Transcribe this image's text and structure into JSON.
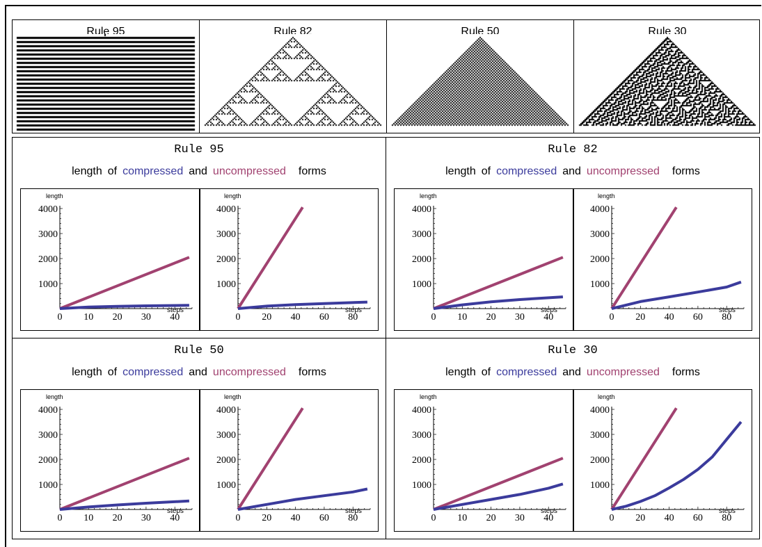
{
  "rules_strip": [
    {
      "title": "Rule 95",
      "pattern": "stripes"
    },
    {
      "title": "Rule 82",
      "pattern": "sierpinski"
    },
    {
      "title": "Rule 50",
      "pattern": "checker-triangle"
    },
    {
      "title": "Rule 30",
      "pattern": "chaotic"
    }
  ],
  "panel_subtitle": {
    "w1": "length",
    "w2": "of",
    "compressed": "compressed",
    "and": "and",
    "uncompressed": "uncompressed",
    "forms": "forms"
  },
  "colors": {
    "compressed": "#3b3b9c",
    "uncompressed": "#a14270"
  },
  "axis_text": {
    "ylabel": "length",
    "xlabel": "steps"
  },
  "chart_data": [
    {
      "type": "line",
      "title": "Rule 95",
      "subplots": [
        {
          "xlim": [
            0,
            46
          ],
          "ylim": [
            0,
            4000
          ],
          "xticks": [
            0,
            10,
            20,
            30,
            40
          ],
          "yticks": [
            1000,
            2000,
            3000,
            4000
          ],
          "xlabel": "steps",
          "ylabel": "length",
          "series": [
            {
              "name": "uncompressed",
              "x": [
                0,
                45
              ],
              "y": [
                0,
                2050
              ]
            },
            {
              "name": "compressed",
              "x": [
                0,
                10,
                20,
                30,
                45
              ],
              "y": [
                0,
                60,
                90,
                110,
                130
              ]
            }
          ]
        },
        {
          "xlim": [
            0,
            92
          ],
          "ylim": [
            0,
            4000
          ],
          "xticks": [
            0,
            20,
            40,
            60,
            80
          ],
          "yticks": [
            1000,
            2000,
            3000,
            4000
          ],
          "xlabel": "steps",
          "ylabel": "length",
          "series": [
            {
              "name": "uncompressed",
              "x": [
                0,
                45
              ],
              "y": [
                0,
                4050
              ]
            },
            {
              "name": "compressed",
              "x": [
                0,
                20,
                40,
                60,
                90
              ],
              "y": [
                0,
                100,
                160,
                200,
                260
              ]
            }
          ]
        }
      ]
    },
    {
      "type": "line",
      "title": "Rule 82",
      "subplots": [
        {
          "xlim": [
            0,
            46
          ],
          "ylim": [
            0,
            4000
          ],
          "xticks": [
            0,
            10,
            20,
            30,
            40
          ],
          "yticks": [
            1000,
            2000,
            3000,
            4000
          ],
          "xlabel": "steps",
          "ylabel": "length",
          "series": [
            {
              "name": "uncompressed",
              "x": [
                0,
                45
              ],
              "y": [
                0,
                2050
              ]
            },
            {
              "name": "compressed",
              "x": [
                0,
                10,
                20,
                30,
                45
              ],
              "y": [
                0,
                150,
                270,
                360,
                470
              ]
            }
          ]
        },
        {
          "xlim": [
            0,
            92
          ],
          "ylim": [
            0,
            4000
          ],
          "xticks": [
            0,
            20,
            40,
            60,
            80
          ],
          "yticks": [
            1000,
            2000,
            3000,
            4000
          ],
          "xlabel": "steps",
          "ylabel": "length",
          "series": [
            {
              "name": "uncompressed",
              "x": [
                0,
                45
              ],
              "y": [
                0,
                4050
              ]
            },
            {
              "name": "compressed",
              "x": [
                0,
                20,
                40,
                60,
                80,
                90
              ],
              "y": [
                0,
                280,
                470,
                660,
                860,
                1060
              ]
            }
          ]
        }
      ]
    },
    {
      "type": "line",
      "title": "Rule 50",
      "subplots": [
        {
          "xlim": [
            0,
            46
          ],
          "ylim": [
            0,
            4000
          ],
          "xticks": [
            0,
            10,
            20,
            30,
            40
          ],
          "yticks": [
            1000,
            2000,
            3000,
            4000
          ],
          "xlabel": "steps",
          "ylabel": "length",
          "series": [
            {
              "name": "uncompressed",
              "x": [
                0,
                45
              ],
              "y": [
                0,
                2050
              ]
            },
            {
              "name": "compressed",
              "x": [
                0,
                10,
                20,
                30,
                45
              ],
              "y": [
                0,
                100,
                180,
                250,
                340
              ]
            }
          ]
        },
        {
          "xlim": [
            0,
            92
          ],
          "ylim": [
            0,
            4000
          ],
          "xticks": [
            0,
            20,
            40,
            60,
            80
          ],
          "yticks": [
            1000,
            2000,
            3000,
            4000
          ],
          "xlabel": "steps",
          "ylabel": "length",
          "series": [
            {
              "name": "uncompressed",
              "x": [
                0,
                45
              ],
              "y": [
                0,
                4050
              ]
            },
            {
              "name": "compressed",
              "x": [
                0,
                20,
                40,
                60,
                80,
                90
              ],
              "y": [
                0,
                200,
                400,
                550,
                700,
                820
              ]
            }
          ]
        }
      ]
    },
    {
      "type": "line",
      "title": "Rule 30",
      "subplots": [
        {
          "xlim": [
            0,
            46
          ],
          "ylim": [
            0,
            4000
          ],
          "xticks": [
            0,
            10,
            20,
            30,
            40
          ],
          "yticks": [
            1000,
            2000,
            3000,
            4000
          ],
          "xlabel": "steps",
          "ylabel": "length",
          "series": [
            {
              "name": "uncompressed",
              "x": [
                0,
                45
              ],
              "y": [
                0,
                2050
              ]
            },
            {
              "name": "compressed",
              "x": [
                0,
                10,
                20,
                30,
                40,
                45
              ],
              "y": [
                0,
                200,
                400,
                600,
                850,
                1020
              ]
            }
          ]
        },
        {
          "xlim": [
            0,
            92
          ],
          "ylim": [
            0,
            4000
          ],
          "xticks": [
            0,
            20,
            40,
            60,
            80
          ],
          "yticks": [
            1000,
            2000,
            3000,
            4000
          ],
          "xlabel": "steps",
          "ylabel": "length",
          "series": [
            {
              "name": "uncompressed",
              "x": [
                0,
                45
              ],
              "y": [
                0,
                4050
              ]
            },
            {
              "name": "compressed",
              "x": [
                0,
                10,
                20,
                30,
                40,
                50,
                60,
                70,
                80,
                90
              ],
              "y": [
                0,
                130,
                320,
                550,
                860,
                1200,
                1600,
                2100,
                2800,
                3500
              ]
            }
          ]
        }
      ]
    }
  ]
}
